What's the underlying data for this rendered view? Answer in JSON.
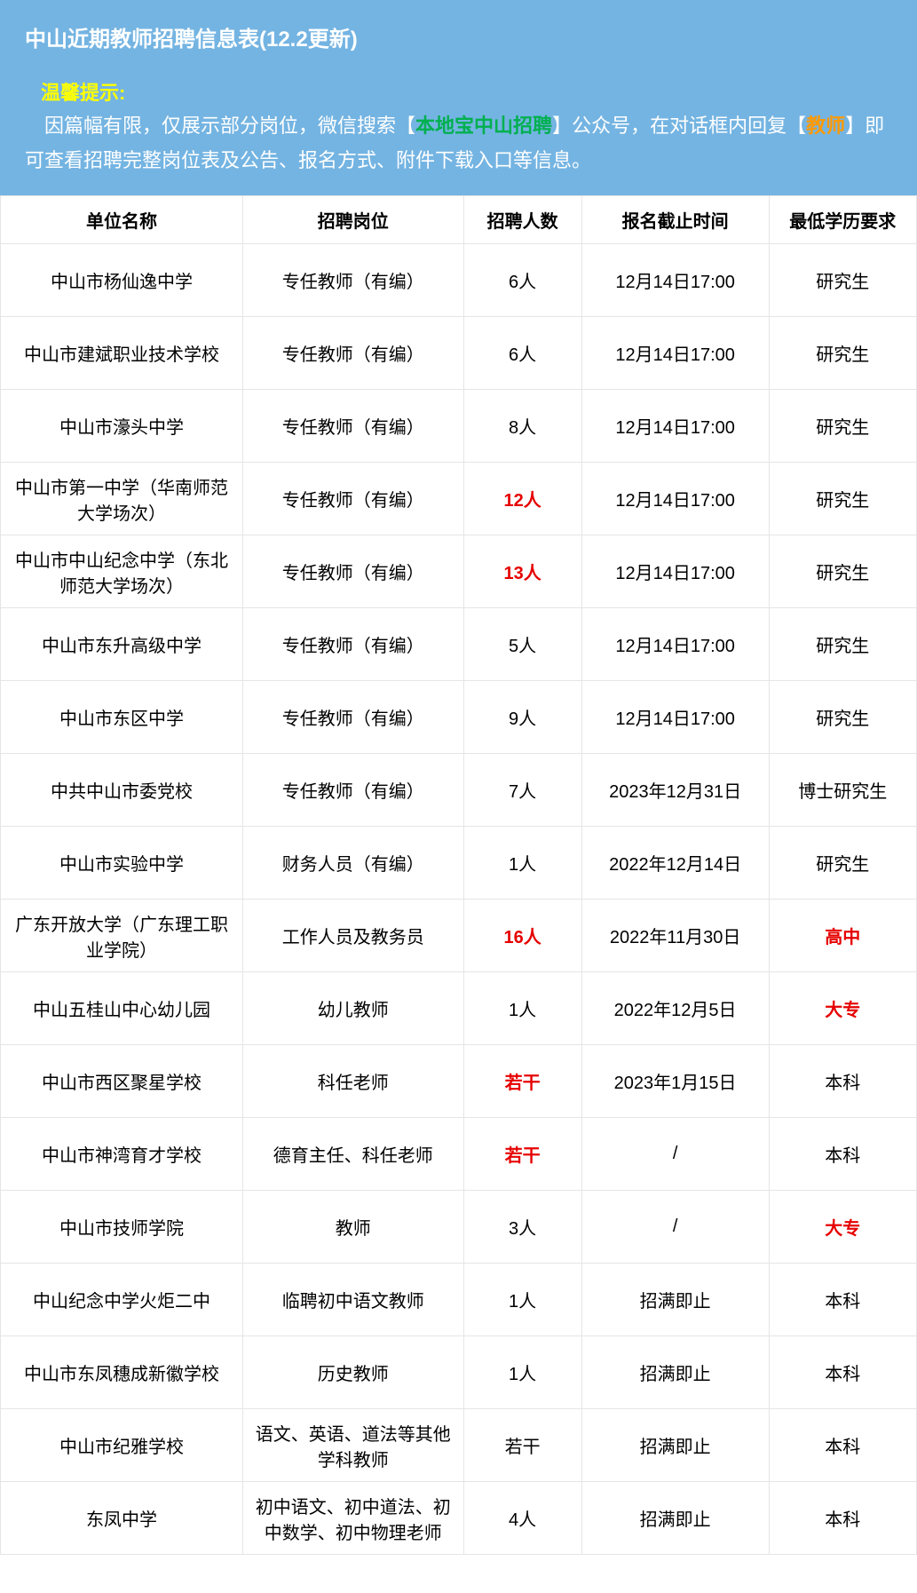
{
  "header": {
    "title": "中山近期教师招聘信息表(12.2更新)",
    "tip_label": "温馨提示:",
    "tip_prefix": "　因篇幅有限，仅展示部分岗位，微信搜索",
    "tip_hl1_open": "【",
    "tip_hl1_text": "本地宝中山招聘",
    "tip_hl1_close": "】",
    "tip_mid1": "公众号，在对话框内回复",
    "tip_hl2_open": "【",
    "tip_hl2_text": "教师",
    "tip_hl2_close": "】",
    "tip_suffix": "即可查看招聘完整岗位表及公告、报名方式、附件下载入口等信息。"
  },
  "columns": [
    "单位名称",
    "招聘岗位",
    "招聘人数",
    "报名截止时间",
    "最低学历要求"
  ],
  "rows": [
    {
      "cells": [
        "中山市杨仙逸中学",
        "专任教师（有编）",
        "6人",
        "12月14日17:00",
        "研究生"
      ],
      "red": [
        false,
        false,
        false,
        false,
        false
      ]
    },
    {
      "cells": [
        "中山市建斌职业技术学校",
        "专任教师（有编）",
        "6人",
        "12月14日17:00",
        "研究生"
      ],
      "red": [
        false,
        false,
        false,
        false,
        false
      ]
    },
    {
      "cells": [
        "中山市濠头中学",
        "专任教师（有编）",
        "8人",
        "12月14日17:00",
        "研究生"
      ],
      "red": [
        false,
        false,
        false,
        false,
        false
      ]
    },
    {
      "cells": [
        "中山市第一中学（华南师范大学场次）",
        "专任教师（有编）",
        "12人",
        "12月14日17:00",
        "研究生"
      ],
      "red": [
        false,
        false,
        true,
        false,
        false
      ]
    },
    {
      "cells": [
        "中山市中山纪念中学（东北师范大学场次）",
        "专任教师（有编）",
        "13人",
        "12月14日17:00",
        "研究生"
      ],
      "red": [
        false,
        false,
        true,
        false,
        false
      ]
    },
    {
      "cells": [
        "中山市东升高级中学",
        "专任教师（有编）",
        "5人",
        "12月14日17:00",
        "研究生"
      ],
      "red": [
        false,
        false,
        false,
        false,
        false
      ]
    },
    {
      "cells": [
        "中山市东区中学",
        "专任教师（有编）",
        "9人",
        "12月14日17:00",
        "研究生"
      ],
      "red": [
        false,
        false,
        false,
        false,
        false
      ]
    },
    {
      "cells": [
        "中共中山市委党校",
        "专任教师（有编）",
        "7人",
        "2023年12月31日",
        "博士研究生"
      ],
      "red": [
        false,
        false,
        false,
        false,
        false
      ]
    },
    {
      "cells": [
        "中山市实验中学",
        "财务人员（有编）",
        "1人",
        "2022年12月14日",
        "研究生"
      ],
      "red": [
        false,
        false,
        false,
        false,
        false
      ]
    },
    {
      "cells": [
        "广东开放大学（广东理工职业学院）",
        "工作人员及教务员",
        "16人",
        "2022年11月30日",
        "高中"
      ],
      "red": [
        false,
        false,
        true,
        false,
        true
      ]
    },
    {
      "cells": [
        "中山五桂山中心幼儿园",
        "幼儿教师",
        "1人",
        "2022年12月5日",
        "大专"
      ],
      "red": [
        false,
        false,
        false,
        false,
        true
      ]
    },
    {
      "cells": [
        "中山市西区聚星学校",
        "科任老师",
        "若干",
        "2023年1月15日",
        "本科"
      ],
      "red": [
        false,
        false,
        true,
        false,
        false
      ]
    },
    {
      "cells": [
        "中山市神湾育才学校",
        "德育主任、科任老师",
        "若干",
        "/",
        "本科"
      ],
      "red": [
        false,
        false,
        true,
        false,
        false
      ]
    },
    {
      "cells": [
        "中山市技师学院",
        "教师",
        "3人",
        "/",
        "大专"
      ],
      "red": [
        false,
        false,
        false,
        false,
        true
      ]
    },
    {
      "cells": [
        "中山纪念中学火炬二中",
        "临聘初中语文教师",
        "1人",
        "招满即止",
        "本科"
      ],
      "red": [
        false,
        false,
        false,
        false,
        false
      ]
    },
    {
      "cells": [
        "中山市东凤穗成新徽学校",
        "历史教师",
        "1人",
        "招满即止",
        "本科"
      ],
      "red": [
        false,
        false,
        false,
        false,
        false
      ]
    },
    {
      "cells": [
        "中山市纪雅学校",
        "语文、英语、道法等其他学科教师",
        "若干",
        "招满即止",
        "本科"
      ],
      "red": [
        false,
        false,
        false,
        false,
        false
      ]
    },
    {
      "cells": [
        "东凤中学",
        "初中语文、初中道法、初中数学、初中物理老师",
        "4人",
        "招满即止",
        "本科"
      ],
      "red": [
        false,
        false,
        false,
        false,
        false
      ]
    }
  ],
  "style": {
    "header_bg": "#74b4e2",
    "border_color": "#e5e5e5",
    "red_color": "#e60000",
    "tip_label_color": "#ffff00",
    "hl_green": "#00b04f",
    "hl_orange": "#ff9900"
  }
}
